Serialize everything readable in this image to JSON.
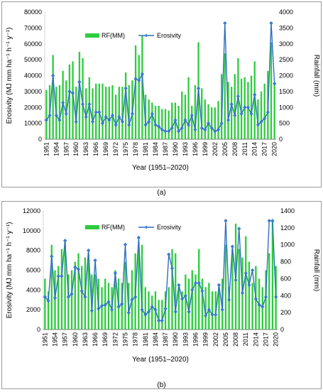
{
  "panels": [
    {
      "label": "(a)"
    },
    {
      "label": "(b)"
    }
  ],
  "colors": {
    "bar": "#2ecc40",
    "line": "#2e6fc0",
    "marker": "#3a7fd5"
  },
  "chart_data": [
    {
      "type": "bar+line",
      "xlabel": "Year (1951–2020)",
      "ylabel_left": "Erosivity (MJ mm ha⁻¹ h⁻¹ y⁻¹)",
      "ylabel_right": "Rainfall (mm)",
      "legend": [
        "RF(MM)",
        "Erosivity"
      ],
      "legend_position": "top-center",
      "ylim_left": [
        0,
        80000
      ],
      "ylim_right": [
        0,
        4000
      ],
      "yticks_left": [
        "0",
        "10000",
        "20000",
        "30000",
        "40000",
        "50000",
        "60000",
        "70000",
        "80000"
      ],
      "yticks_right": [
        "0",
        "500",
        "1000",
        "1500",
        "2000",
        "2500",
        "3000",
        "3500",
        "4000"
      ],
      "xtick_labels": [
        "1951",
        "1954",
        "1957",
        "1960",
        "1963",
        "1966",
        "1969",
        "1972",
        "1975",
        "1978",
        "1981",
        "1984",
        "1987",
        "1990",
        "1993",
        "1996",
        "1999",
        "2002",
        "2005",
        "2008",
        "2011",
        "2014",
        "2017",
        "2020"
      ],
      "years_start": 1951,
      "series": [
        {
          "name": "RF(MM)",
          "axis": "right",
          "kind": "bar",
          "values": [
            1550,
            1700,
            2650,
            1650,
            1700,
            2150,
            1850,
            2350,
            2450,
            1650,
            2750,
            2550,
            1600,
            1950,
            1600,
            1750,
            1750,
            1750,
            1650,
            1650,
            1700,
            1400,
            1650,
            1650,
            2100,
            1700,
            1850,
            2950,
            2650,
            3250,
            1400,
            1250,
            1150,
            1050,
            1050,
            950,
            950,
            900,
            1150,
            1150,
            1050,
            1500,
            1400,
            1950,
            1050,
            1700,
            3050,
            1600,
            1250,
            1100,
            1000,
            1000,
            1200,
            2050,
            2700,
            1800,
            1650,
            2050,
            2550,
            1900,
            1950,
            1800,
            2000,
            2450,
            1250,
            1500,
            1750,
            2150,
            3050,
            1750
          ]
        },
        {
          "name": "Erosivity",
          "axis": "left",
          "kind": "line",
          "values": [
            12000,
            15000,
            40000,
            15000,
            12000,
            23000,
            16000,
            30000,
            29000,
            11000,
            36000,
            22000,
            14000,
            22000,
            11000,
            17000,
            17000,
            10000,
            14000,
            12000,
            15000,
            9000,
            14000,
            11000,
            32000,
            9000,
            16000,
            38000,
            37000,
            41000,
            9000,
            11000,
            16000,
            9000,
            8000,
            6000,
            5000,
            5000,
            7000,
            12000,
            5000,
            7000,
            12000,
            9000,
            15000,
            6000,
            32000,
            7000,
            6000,
            10000,
            7000,
            5000,
            6000,
            10000,
            73000,
            12000,
            22000,
            15000,
            27000,
            16000,
            20000,
            20000,
            16000,
            28000,
            9000,
            11000,
            13000,
            17000,
            73000,
            35000
          ]
        }
      ]
    },
    {
      "type": "bar+line",
      "xlabel": "Year (1951–2020)",
      "ylabel_left": "Erosivity (MJ mm ha⁻¹ h⁻¹ y⁻¹)",
      "ylabel_right": "Rainfall (mm)",
      "legend": [
        "RF(MM)",
        "Erosivity"
      ],
      "legend_position": "top-center",
      "ylim_left": [
        0,
        12000
      ],
      "ylim_right": [
        0,
        1400
      ],
      "yticks_left": [
        "0",
        "2000",
        "4000",
        "6000",
        "8000",
        "10000",
        "12000"
      ],
      "yticks_right": [
        "0",
        "200",
        "400",
        "600",
        "800",
        "1000",
        "1200",
        "1400"
      ],
      "xtick_labels": [
        "1951",
        "1954",
        "1957",
        "1960",
        "1963",
        "1966",
        "1969",
        "1972",
        "1975",
        "1978",
        "1981",
        "1984",
        "1987",
        "1990",
        "1993",
        "1996",
        "1999",
        "2002",
        "2005",
        "2008",
        "2011",
        "2014",
        "2017",
        "2020"
      ],
      "years_start": 1951,
      "series": [
        {
          "name": "RF(MM)",
          "axis": "right",
          "kind": "bar",
          "values": [
            600,
            450,
            1000,
            700,
            750,
            950,
            1050,
            650,
            700,
            800,
            900,
            750,
            850,
            900,
            650,
            650,
            600,
            500,
            600,
            550,
            500,
            700,
            600,
            550,
            800,
            550,
            700,
            900,
            950,
            1000,
            500,
            450,
            400,
            450,
            350,
            350,
            450,
            500,
            950,
            900,
            500,
            450,
            650,
            600,
            700,
            650,
            950,
            600,
            500,
            550,
            450,
            450,
            500,
            600,
            1000,
            500,
            950,
            1250,
            950,
            850,
            1100,
            800,
            550,
            750,
            600,
            500,
            700,
            900,
            1300,
            750
          ]
        },
        {
          "name": "Erosivity",
          "axis": "left",
          "kind": "line",
          "values": [
            3300,
            2900,
            7400,
            3200,
            5400,
            5400,
            9000,
            3300,
            3600,
            6300,
            6100,
            3900,
            3300,
            8000,
            1900,
            7000,
            2100,
            2400,
            2500,
            2800,
            2000,
            5700,
            2300,
            2600,
            8600,
            1700,
            3000,
            3300,
            9300,
            2000,
            1500,
            1800,
            2300,
            2000,
            900,
            900,
            2100,
            7600,
            6200,
            1800,
            4500,
            3100,
            3400,
            1800,
            4000,
            4700,
            4700,
            3900,
            1400,
            2000,
            1500,
            1500,
            4500,
            2000,
            11000,
            3000,
            8400,
            5000,
            10200,
            3700,
            5700,
            4500,
            6000,
            3100,
            2500,
            2300,
            3300,
            11000,
            11000,
            3300
          ]
        }
      ]
    }
  ]
}
